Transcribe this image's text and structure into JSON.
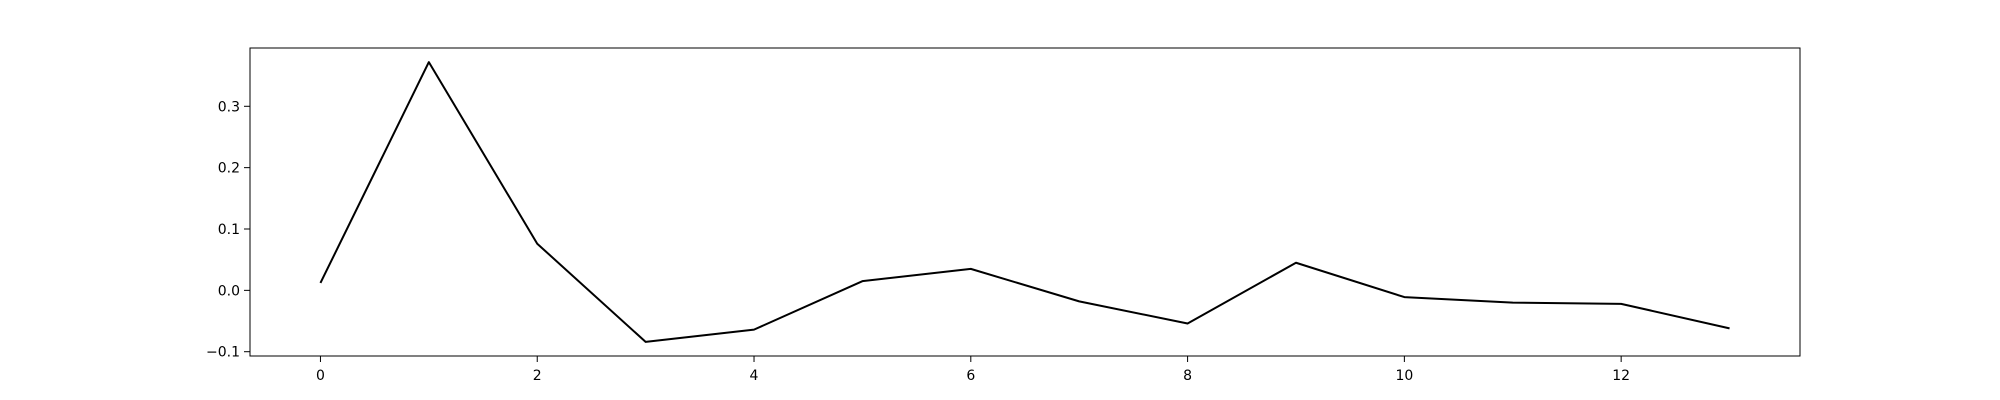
{
  "chart_data": {
    "type": "line",
    "title": "",
    "xlabel": "",
    "ylabel": "",
    "x": [
      0,
      1,
      2,
      3,
      4,
      5,
      6,
      7,
      8,
      9,
      10,
      11,
      12,
      13
    ],
    "series": [
      {
        "values": [
          0.012,
          0.372,
          0.076,
          -0.084,
          -0.064,
          0.015,
          0.035,
          -0.018,
          -0.054,
          0.045,
          -0.011,
          -0.02,
          -0.022,
          -0.062
        ],
        "color": "#000000"
      }
    ],
    "xlim": [
      -0.65,
      13.65
    ],
    "ylim": [
      -0.107,
      0.395
    ],
    "xticks": [
      0,
      2,
      4,
      6,
      8,
      10,
      12
    ],
    "yticks": [
      -0.1,
      0.0,
      0.1,
      0.2,
      0.3
    ],
    "xtick_labels": [
      "0",
      "2",
      "4",
      "6",
      "8",
      "10",
      "12"
    ],
    "ytick_labels": [
      "−0.1",
      "0.0",
      "0.1",
      "0.2",
      "0.3"
    ],
    "grid": false,
    "legend": "none"
  }
}
